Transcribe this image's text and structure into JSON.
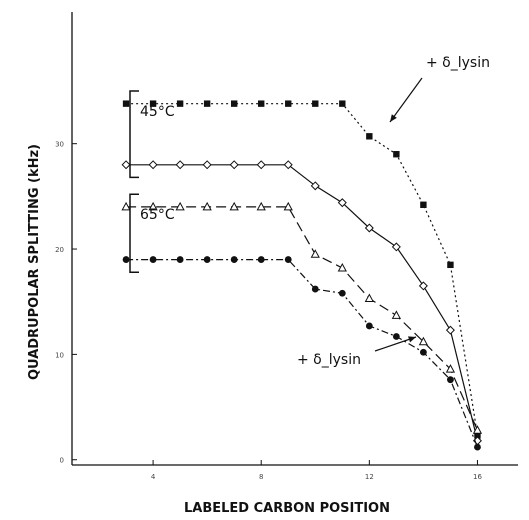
{
  "chart_data": {
    "type": "line",
    "title": "",
    "xlabel": "LABELED CARBON POSITION",
    "ylabel": "QUADRUPOLAR SPLITTING (kHz)",
    "xlim": [
      1,
      17.5
    ],
    "ylim": [
      -0.5,
      42.5
    ],
    "x_ticks": [
      4,
      8,
      12,
      16
    ],
    "y_ticks": [
      0,
      10,
      20,
      30
    ],
    "y_tick_labels": [
      "0",
      "10",
      "20",
      "30"
    ],
    "grid": false,
    "series": [
      {
        "x": [
          3,
          4,
          5,
          6,
          7,
          8,
          9,
          10,
          11,
          12,
          13,
          14,
          15,
          16
        ],
        "values": [
          33.8,
          33.8,
          33.8,
          33.8,
          33.8,
          33.8,
          33.8,
          33.8,
          33.8,
          30.7,
          29.0,
          24.2,
          18.5,
          2.3
        ],
        "marker": "square-filled",
        "dash": "2,3",
        "color": "#111111",
        "annotation": "+ δ_lysin"
      },
      {
        "x": [
          3,
          4,
          5,
          6,
          7,
          8,
          9,
          10,
          11,
          12,
          13,
          14,
          15,
          16
        ],
        "values": [
          28.0,
          28.0,
          28.0,
          28.0,
          28.0,
          28.0,
          28.0,
          26.0,
          24.4,
          22.0,
          20.2,
          16.5,
          12.3,
          1.8
        ],
        "marker": "diamond-open",
        "dash": "",
        "color": "#111111"
      },
      {
        "x": [
          3,
          4,
          5,
          6,
          7,
          8,
          9,
          10,
          11,
          12,
          13,
          14,
          15,
          16
        ],
        "values": [
          24.0,
          24.0,
          24.0,
          24.0,
          24.0,
          24.0,
          24.0,
          19.5,
          18.2,
          15.3,
          13.7,
          11.2,
          8.6,
          2.8
        ],
        "marker": "triangle-open",
        "dash": "10,5",
        "color": "#111111"
      },
      {
        "x": [
          3,
          4,
          5,
          6,
          7,
          8,
          9,
          10,
          11,
          12,
          13,
          14,
          15,
          16
        ],
        "values": [
          19.0,
          19.0,
          19.0,
          19.0,
          19.0,
          19.0,
          19.0,
          16.2,
          15.8,
          12.7,
          11.7,
          10.2,
          7.6,
          1.2
        ],
        "marker": "circle-filled",
        "dash": "7,3,2,3",
        "color": "#111111",
        "annotation": "+ δ_lysin"
      }
    ],
    "annotations": {
      "temp_high": "45°C",
      "temp_low": "65°C",
      "lysin_upper": "+ δ_lysin",
      "lysin_lower": "+ δ_lysin"
    }
  }
}
